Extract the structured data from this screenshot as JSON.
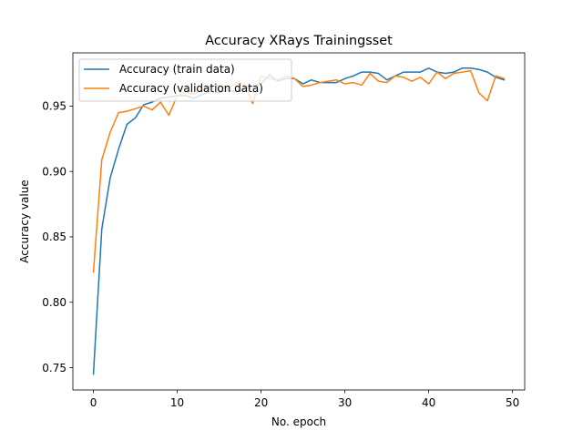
{
  "chart_data": {
    "type": "line",
    "title": "Accuracy XRays Trainingsset",
    "xlabel": "No. epoch",
    "ylabel": "Accuracy value",
    "xlim": [
      -2.45,
      51.45
    ],
    "ylim": [
      0.7329,
      0.9907
    ],
    "xticks": [
      0,
      10,
      20,
      30,
      40,
      50
    ],
    "yticks": [
      0.75,
      0.8,
      0.85,
      0.9,
      0.95
    ],
    "ytick_labels": [
      "0.75",
      "0.80",
      "0.85",
      "0.90",
      "0.95"
    ],
    "grid": false,
    "legend_position": "upper-left",
    "x": [
      0,
      1,
      2,
      3,
      4,
      5,
      6,
      7,
      8,
      9,
      10,
      11,
      12,
      13,
      14,
      15,
      16,
      17,
      18,
      19,
      20,
      21,
      22,
      23,
      24,
      25,
      26,
      27,
      28,
      29,
      30,
      31,
      32,
      33,
      34,
      35,
      36,
      37,
      38,
      39,
      40,
      41,
      42,
      43,
      44,
      45,
      46,
      47,
      48,
      49
    ],
    "series": [
      {
        "name": "Accuracy (train data)",
        "color": "#1f77b4",
        "values": [
          0.745,
          0.856,
          0.895,
          0.917,
          0.936,
          0.941,
          0.951,
          0.953,
          0.956,
          0.957,
          0.958,
          0.958,
          0.956,
          0.959,
          0.961,
          0.96,
          0.962,
          0.961,
          0.963,
          0.965,
          0.967,
          0.974,
          0.969,
          0.971,
          0.971,
          0.967,
          0.97,
          0.968,
          0.968,
          0.968,
          0.971,
          0.973,
          0.976,
          0.976,
          0.975,
          0.97,
          0.973,
          0.976,
          0.976,
          0.976,
          0.979,
          0.976,
          0.975,
          0.976,
          0.979,
          0.979,
          0.978,
          0.976,
          0.972,
          0.97
        ]
      },
      {
        "name": "Accuracy (validation data)",
        "color": "#ff7f0e",
        "values": [
          0.823,
          0.909,
          0.93,
          0.945,
          0.946,
          0.948,
          0.95,
          0.947,
          0.953,
          0.943,
          0.958,
          0.961,
          0.959,
          0.963,
          0.965,
          0.966,
          0.963,
          0.968,
          0.967,
          0.952,
          0.973,
          0.971,
          0.97,
          0.973,
          0.971,
          0.965,
          0.966,
          0.968,
          0.969,
          0.97,
          0.967,
          0.968,
          0.966,
          0.975,
          0.969,
          0.968,
          0.973,
          0.972,
          0.969,
          0.972,
          0.967,
          0.976,
          0.971,
          0.975,
          0.976,
          0.977,
          0.96,
          0.954,
          0.973,
          0.971
        ]
      }
    ]
  }
}
